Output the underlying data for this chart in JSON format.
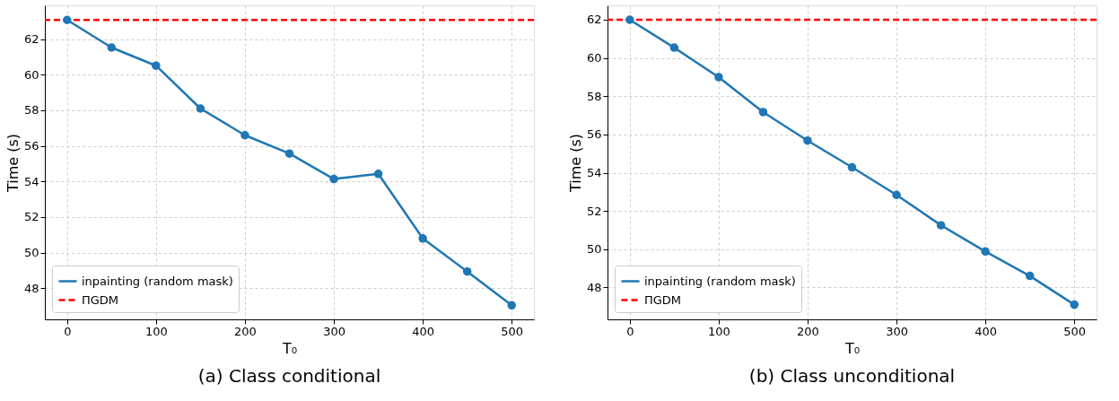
{
  "chart_data": [
    {
      "type": "line",
      "xlabel": "T₀",
      "ylabel": "Time (s)",
      "annotations": [
        "(a) Class conditional"
      ],
      "x": [
        0,
        50,
        100,
        150,
        200,
        250,
        300,
        350,
        400,
        450,
        500
      ],
      "series": [
        {
          "name": "inpainting (random mask)",
          "color": "#1f77b4",
          "values": [
            63.08,
            61.53,
            60.51,
            58.1,
            56.6,
            55.57,
            54.14,
            54.43,
            50.8,
            48.94,
            47.04
          ]
        }
      ],
      "ref_lines": [
        {
          "axis": "y",
          "value": 63.08,
          "label": "ΠGDM",
          "color": "#ff0000",
          "line_style": "dashed"
        }
      ],
      "xlim": [
        -25,
        525
      ],
      "ylim": [
        46.25,
        63.9
      ],
      "xticks": [
        0,
        100,
        200,
        300,
        400,
        500
      ],
      "yticks": [
        48,
        50,
        52,
        54,
        56,
        58,
        60,
        62
      ],
      "grid": true,
      "legend": "bottom left",
      "marker": "circle",
      "line_style": "solid"
    },
    {
      "type": "line",
      "xlabel": "T₀",
      "ylabel": "Time (s)",
      "annotations": [
        "(b) Class unconditional"
      ],
      "x": [
        0,
        50,
        100,
        150,
        200,
        250,
        300,
        350,
        400,
        450,
        500
      ],
      "series": [
        {
          "name": "inpainting (random mask)",
          "color": "#1f77b4",
          "values": [
            62.0,
            60.54,
            59.0,
            57.17,
            55.68,
            54.28,
            52.84,
            51.25,
            49.88,
            48.6,
            47.1
          ]
        }
      ],
      "ref_lines": [
        {
          "axis": "y",
          "value": 62.0,
          "label": "ΠGDM",
          "color": "#ff0000",
          "line_style": "dashed"
        }
      ],
      "xlim": [
        -25,
        525
      ],
      "ylim": [
        46.33,
        62.75
      ],
      "xticks": [
        0,
        100,
        200,
        300,
        400,
        500
      ],
      "yticks": [
        48,
        50,
        52,
        54,
        56,
        58,
        60,
        62
      ],
      "grid": true,
      "legend": "bottom left",
      "marker": "circle",
      "line_style": "solid"
    }
  ]
}
